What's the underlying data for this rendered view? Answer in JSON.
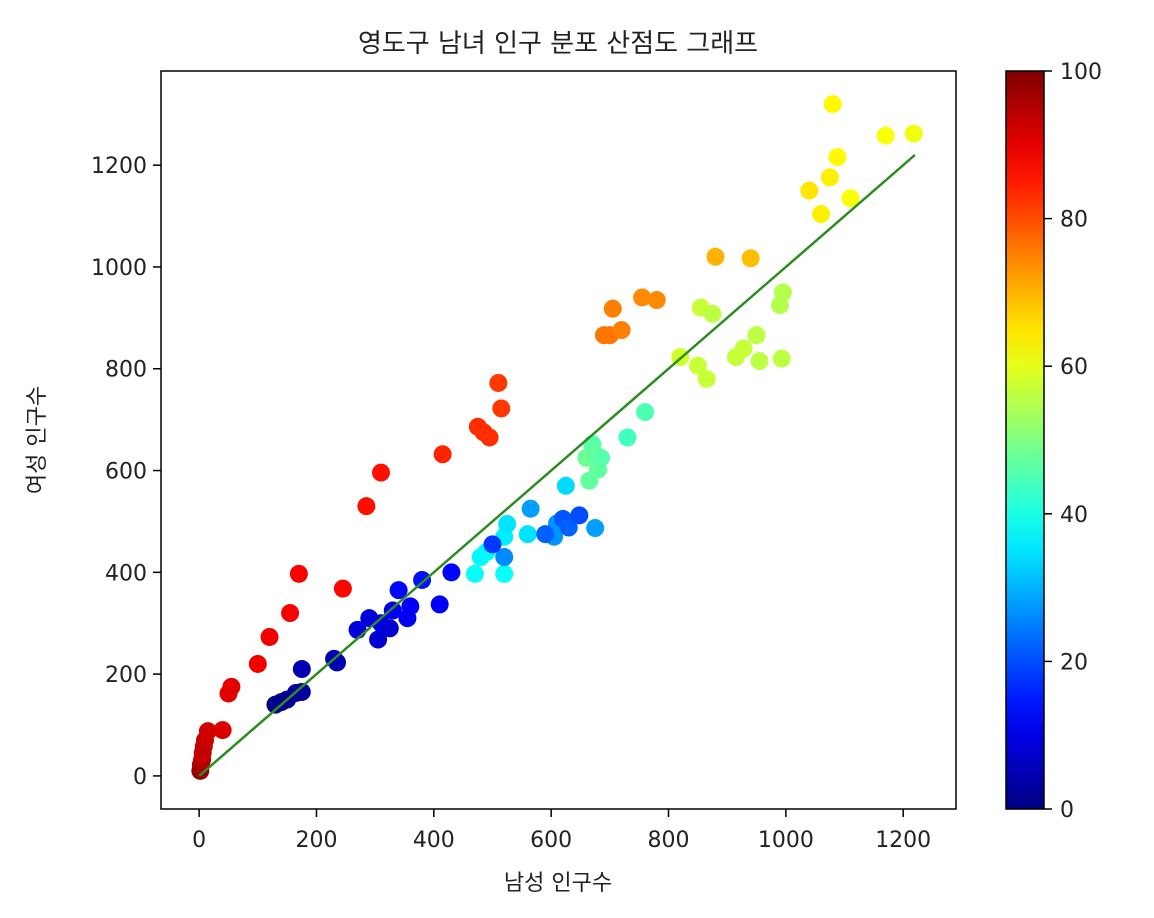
{
  "chart_data": {
    "type": "scatter",
    "title": "영도구 남녀 인구 분포 산점도 그래프",
    "xlabel": "남성 인구수",
    "ylabel": "여성 인구수",
    "xlim": [
      -65,
      1290
    ],
    "ylim": [
      -65,
      1385
    ],
    "x_ticks": [
      0,
      200,
      400,
      600,
      800,
      1000,
      1200
    ],
    "y_ticks": [
      0,
      200,
      400,
      600,
      800,
      1000,
      1200
    ],
    "grid": false,
    "colormap": "jet",
    "colorbar": {
      "range": [
        0,
        100
      ],
      "ticks": [
        0,
        20,
        40,
        60,
        80,
        100
      ]
    },
    "trend_line": {
      "x": [
        0,
        1220
      ],
      "y": [
        0,
        1220
      ],
      "color": "#2e8b22"
    },
    "series": [
      {
        "points": [
          [
            2,
            10,
            98
          ],
          [
            3,
            22,
            96
          ],
          [
            5,
            32,
            95
          ],
          [
            6,
            45,
            93
          ],
          [
            8,
            58,
            94
          ],
          [
            10,
            70,
            93
          ],
          [
            15,
            88,
            92
          ],
          [
            40,
            90,
            91
          ],
          [
            50,
            162,
            90
          ],
          [
            55,
            175,
            90
          ],
          [
            100,
            220,
            89
          ],
          [
            120,
            273,
            89
          ],
          [
            155,
            320,
            88
          ],
          [
            170,
            397,
            88
          ],
          [
            245,
            368,
            87
          ],
          [
            285,
            530,
            86
          ],
          [
            310,
            596,
            86
          ],
          [
            415,
            632,
            84
          ],
          [
            475,
            686,
            83
          ],
          [
            485,
            675,
            83
          ],
          [
            495,
            665,
            83
          ],
          [
            510,
            772,
            82
          ],
          [
            515,
            722,
            82
          ],
          [
            690,
            866,
            76
          ],
          [
            700,
            866,
            76
          ],
          [
            705,
            918,
            75
          ],
          [
            720,
            876,
            75
          ],
          [
            755,
            940,
            74
          ],
          [
            780,
            935,
            74
          ],
          [
            880,
            1020,
            70
          ],
          [
            940,
            1017,
            69
          ],
          [
            1040,
            1150,
            65
          ],
          [
            1060,
            1104,
            64
          ],
          [
            1075,
            1176,
            64
          ],
          [
            1080,
            1320,
            63
          ],
          [
            1088,
            1216,
            63
          ],
          [
            1110,
            1135,
            62
          ],
          [
            1170,
            1258,
            62
          ],
          [
            1218,
            1262,
            61
          ],
          [
            820,
            823,
            58
          ],
          [
            850,
            806,
            57
          ],
          [
            855,
            920,
            57
          ],
          [
            865,
            780,
            57
          ],
          [
            875,
            908,
            56
          ],
          [
            915,
            823,
            57
          ],
          [
            928,
            840,
            57
          ],
          [
            950,
            866,
            56
          ],
          [
            955,
            815,
            56
          ],
          [
            990,
            925,
            55
          ],
          [
            993,
            820,
            56
          ],
          [
            995,
            950,
            55
          ],
          [
            660,
            625,
            48
          ],
          [
            665,
            580,
            47
          ],
          [
            670,
            652,
            46
          ],
          [
            675,
            632,
            47
          ],
          [
            680,
            602,
            47
          ],
          [
            685,
            625,
            46
          ],
          [
            730,
            665,
            44
          ],
          [
            760,
            715,
            45
          ],
          [
            470,
            397,
            38
          ],
          [
            480,
            430,
            37
          ],
          [
            490,
            440,
            37
          ],
          [
            520,
            397,
            38
          ],
          [
            520,
            470,
            36
          ],
          [
            525,
            495,
            35
          ],
          [
            560,
            475,
            35
          ],
          [
            625,
            570,
            34
          ],
          [
            565,
            525,
            28
          ],
          [
            610,
            496,
            27
          ],
          [
            605,
            470,
            27
          ],
          [
            675,
            487,
            28
          ],
          [
            520,
            430,
            26
          ],
          [
            590,
            475,
            22
          ],
          [
            620,
            505,
            21
          ],
          [
            630,
            488,
            22
          ],
          [
            648,
            512,
            20
          ],
          [
            500,
            455,
            18
          ],
          [
            380,
            385,
            14
          ],
          [
            340,
            365,
            13
          ],
          [
            430,
            400,
            13
          ],
          [
            410,
            337,
            12
          ],
          [
            360,
            333,
            12
          ],
          [
            355,
            310,
            11
          ],
          [
            330,
            325,
            11
          ],
          [
            310,
            300,
            10
          ],
          [
            290,
            310,
            9
          ],
          [
            270,
            287,
            9
          ],
          [
            305,
            268,
            8
          ],
          [
            325,
            290,
            8
          ],
          [
            230,
            230,
            6
          ],
          [
            235,
            223,
            5
          ],
          [
            175,
            210,
            5
          ],
          [
            175,
            165,
            3
          ],
          [
            165,
            163,
            3
          ],
          [
            150,
            150,
            2
          ],
          [
            140,
            145,
            1
          ],
          [
            130,
            140,
            1
          ]
        ]
      }
    ]
  }
}
